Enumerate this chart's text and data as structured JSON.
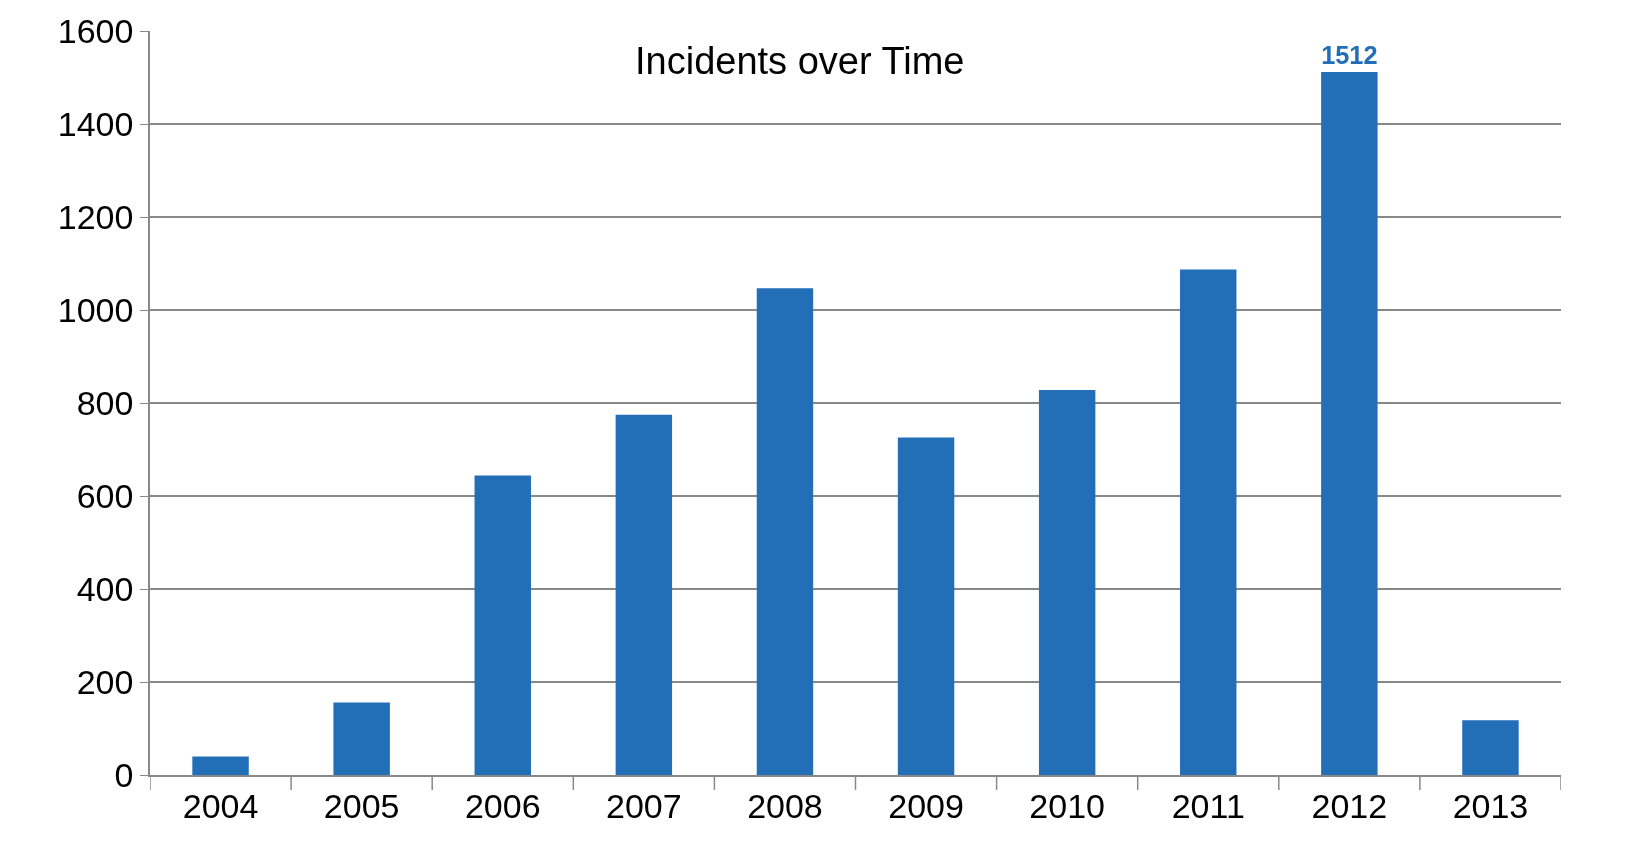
{
  "chart_data": {
    "type": "bar",
    "title": "Incidents over Time",
    "categories": [
      "2004",
      "2005",
      "2006",
      "2007",
      "2008",
      "2009",
      "2010",
      "2011",
      "2012",
      "2013"
    ],
    "values": [
      40,
      156,
      644,
      775,
      1047,
      726,
      828,
      1087,
      1512,
      118
    ],
    "value_labels": [
      null,
      null,
      null,
      null,
      null,
      null,
      null,
      null,
      "1512",
      null
    ],
    "color": "#226eb7",
    "ylim": [
      0,
      1600
    ],
    "yticks": [
      0,
      200,
      400,
      600,
      800,
      1000,
      1200,
      1400,
      1600
    ],
    "grid": "y",
    "legend": false
  }
}
